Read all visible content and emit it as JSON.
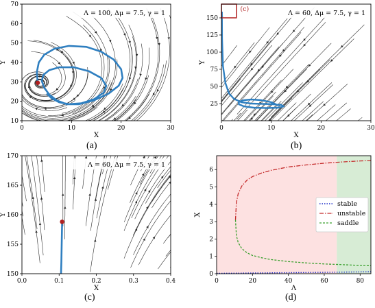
{
  "figure": {
    "captions": [
      "(a)",
      "(b)",
      "(c)",
      "(d)"
    ]
  },
  "colors": {
    "stream": "#2b2b2b",
    "trajectory": "#2f7fc0",
    "marker": "#b02020",
    "stable": "#1f2fc8",
    "unstable": "#c42a2a",
    "saddle": "#3aa02e",
    "region_unstable": "#fde1e1",
    "region_stable": "#d7ecd5"
  },
  "chart_data": [
    {
      "type": "scatter",
      "panel": "(a)",
      "annotation": "Λ = 100, Δμ = 7.5, γ = 1",
      "xlabel": "X",
      "ylabel": "Y",
      "xlim": [
        0,
        30
      ],
      "ylim": [
        10,
        70
      ],
      "xticks": [
        0,
        10,
        20,
        30
      ],
      "yticks": [
        10,
        20,
        30,
        40,
        50,
        60,
        70
      ],
      "trajectory": {
        "x": [
          3.2,
          3.0,
          3.4,
          4.5,
          6.5,
          9.5,
          13.0,
          16.0,
          18.5,
          20.0,
          20.3,
          19.5,
          17.5,
          14.5,
          11.5,
          9.0,
          7.0,
          5.5,
          4.5,
          4.0,
          4.3,
          5.5,
          7.5,
          10.5,
          13.5,
          16.0,
          17.0,
          16.5,
          14.5,
          12.0,
          9.5,
          7.5,
          6.0,
          5.0
        ],
        "y": [
          29.5,
          35.0,
          40.0,
          44.0,
          47.0,
          48.5,
          48.0,
          45.5,
          41.5,
          36.5,
          32.0,
          28.0,
          24.0,
          20.5,
          18.5,
          18.5,
          20.5,
          23.5,
          27.0,
          30.5,
          33.5,
          36.0,
          37.5,
          37.5,
          35.5,
          32.0,
          28.0,
          24.5,
          21.0,
          19.0,
          18.5,
          19.5,
          21.5,
          24.0
        ]
      },
      "marker": {
        "x": 3.2,
        "y": 29.5
      }
    },
    {
      "type": "scatter",
      "panel": "(b)",
      "annotation": "Λ = 60, Δμ = 7.5, γ = 1",
      "inset_label": "(c)",
      "xlabel": "X",
      "ylabel": "Y",
      "xlim": [
        0,
        30
      ],
      "ylim": [
        0,
        170
      ],
      "xticks": [
        0,
        10,
        20,
        30
      ],
      "yticks": [
        25,
        50,
        75,
        100,
        125,
        150
      ],
      "trajectory": {
        "x": [
          0.1,
          0.12,
          0.3,
          0.8,
          1.5,
          2.5,
          4.0,
          6.0,
          8.5,
          10.5,
          12.0,
          12.5,
          11.5,
          9.0,
          6.5,
          4.5,
          3.5,
          3.5,
          4.5,
          6.0,
          8.0,
          10.0,
          11.5
        ],
        "y": [
          159.0,
          120.0,
          80.0,
          55.0,
          40.0,
          32.0,
          27.0,
          25.0,
          24.5,
          24.0,
          23.0,
          21.0,
          19.0,
          18.5,
          19.0,
          21.0,
          24.0,
          27.5,
          30.0,
          31.0,
          30.0,
          27.0,
          22.0
        ]
      },
      "inset_box": {
        "x": [
          0,
          3
        ],
        "y": [
          150,
          170
        ]
      }
    },
    {
      "type": "scatter",
      "panel": "(c)",
      "annotation": "Λ = 60, Δμ = 7.5, γ = 1",
      "xlabel": "X",
      "ylabel": "Y",
      "xlim": [
        0.0,
        0.4
      ],
      "ylim": [
        150,
        170
      ],
      "xticks": [
        0.0,
        0.1,
        0.2,
        0.3,
        0.4
      ],
      "yticks": [
        150,
        155,
        160,
        165,
        170
      ],
      "trajectory": {
        "x": [
          0.108,
          0.107,
          0.106,
          0.105
        ],
        "y": [
          158.8,
          155.0,
          152.0,
          150.0
        ]
      },
      "marker": {
        "x": 0.108,
        "y": 158.8
      }
    },
    {
      "type": "line",
      "panel": "(d)",
      "xlabel": "Λ",
      "ylabel": "X",
      "xlim": [
        0,
        86
      ],
      "ylim": [
        0,
        6.8
      ],
      "xticks": [
        0,
        20,
        40,
        60,
        80
      ],
      "yticks": [
        0,
        1,
        2,
        3,
        4,
        5,
        6
      ],
      "regions": [
        {
          "from": 0,
          "to": 67,
          "label": "unstable-region"
        },
        {
          "from": 67,
          "to": 86,
          "label": "stable-region"
        }
      ],
      "legend": {
        "position": "right",
        "entries": [
          "stable",
          "unstable",
          "saddle"
        ]
      },
      "series": [
        {
          "name": "stable",
          "x": [
            0,
            20,
            40,
            60,
            86
          ],
          "y": [
            0.02,
            0.04,
            0.06,
            0.08,
            0.11
          ]
        },
        {
          "name": "unstable",
          "x": [
            10.5,
            11.0,
            12.0,
            14.0,
            17.0,
            20.0,
            25.0,
            30.0,
            40.0,
            50.0,
            60.0,
            70.0,
            80.0,
            86.0
          ],
          "y": [
            3.1,
            4.1,
            4.6,
            5.05,
            5.4,
            5.6,
            5.8,
            5.95,
            6.15,
            6.27,
            6.37,
            6.44,
            6.5,
            6.52
          ]
        },
        {
          "name": "saddle",
          "x": [
            10.5,
            11.0,
            12.0,
            14.0,
            17.0,
            20.0,
            25.0,
            30.0,
            40.0,
            50.0,
            60.0,
            70.0,
            80.0,
            86.0
          ],
          "y": [
            3.1,
            2.2,
            1.8,
            1.45,
            1.2,
            1.05,
            0.92,
            0.82,
            0.7,
            0.62,
            0.56,
            0.52,
            0.48,
            0.46
          ]
        }
      ]
    }
  ]
}
